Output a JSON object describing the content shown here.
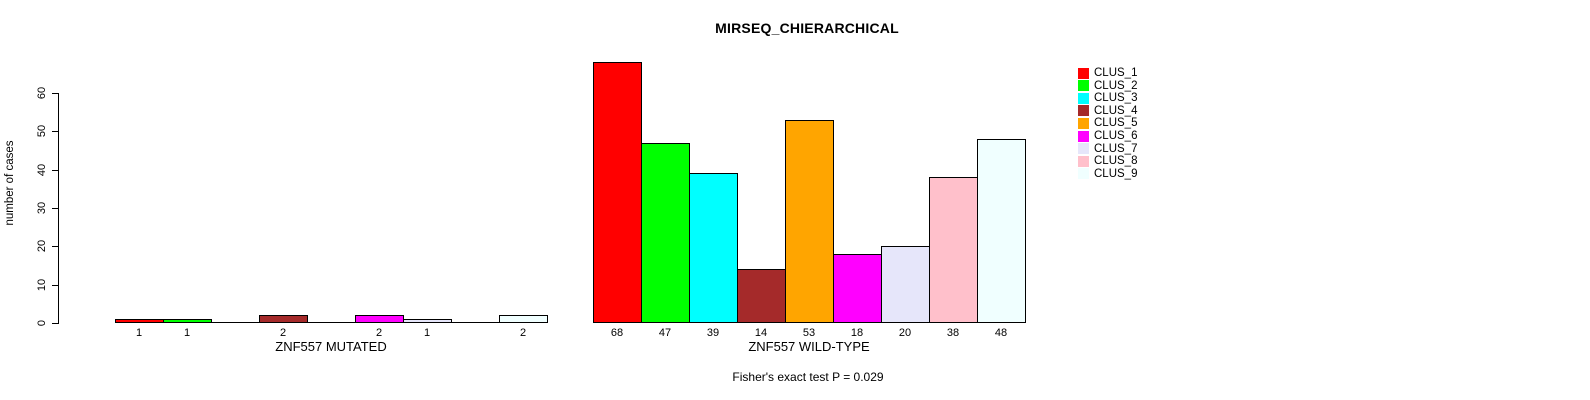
{
  "chart_data": {
    "type": "bar",
    "title": "MIRSEQ_CHIERARCHICAL",
    "ylabel": "number of cases",
    "xlabel": "",
    "ylim": [
      0,
      60
    ],
    "yticks": [
      0,
      10,
      20,
      30,
      40,
      50,
      60
    ],
    "grid": false,
    "legend_position": "right",
    "categories": [
      "CLUS_1",
      "CLUS_2",
      "CLUS_3",
      "CLUS_4",
      "CLUS_5",
      "CLUS_6",
      "CLUS_7",
      "CLUS_8",
      "CLUS_9"
    ],
    "colors": [
      "#FF0000",
      "#00FF00",
      "#00FFFF",
      "#A52A2A",
      "#FFA500",
      "#FF00FF",
      "#E6E6FA",
      "#FFC0CB",
      "#F0FFFF"
    ],
    "bar_border_color": "#000000",
    "series": [
      {
        "name": "ZNF557 MUTATED",
        "values": [
          1,
          1,
          0,
          2,
          0,
          2,
          1,
          0,
          2
        ]
      },
      {
        "name": "ZNF557 WILD-TYPE",
        "values": [
          68,
          47,
          39,
          14,
          53,
          18,
          20,
          38,
          48
        ]
      }
    ],
    "bar_value_labels": {
      "ZNF557 MUTATED": [
        "1",
        "1",
        "",
        "2",
        "",
        "2",
        "1",
        "",
        "2"
      ],
      "ZNF557 WILD-TYPE": [
        "68",
        "47",
        "39",
        "14",
        "53",
        "18",
        "20",
        "38",
        "48"
      ]
    },
    "footnote": "Fisher's exact test P = 0.029"
  }
}
